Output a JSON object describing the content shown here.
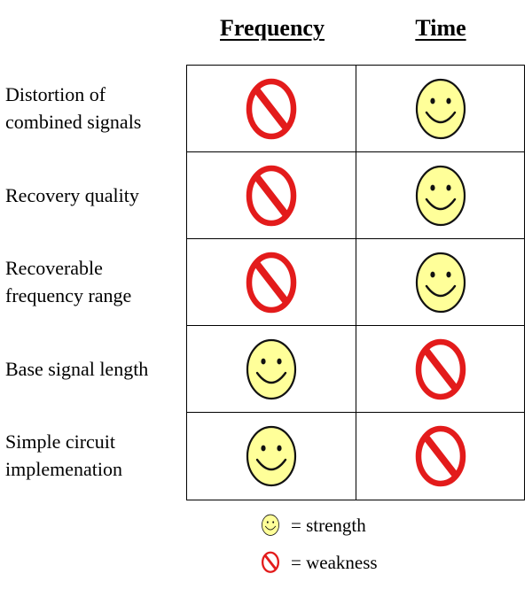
{
  "headers": {
    "frequency": "Frequency",
    "time": "Time"
  },
  "rows": [
    {
      "label": "Distortion of\ncombined signals",
      "frequency": "weakness",
      "time": "strength"
    },
    {
      "label": "Recovery quality",
      "frequency": "weakness",
      "time": "strength"
    },
    {
      "label": "Recoverable\nfrequency range",
      "frequency": "weakness",
      "time": "strength"
    },
    {
      "label": "Base signal length",
      "frequency": "strength",
      "time": "weakness"
    },
    {
      "label": "Simple circuit\nimplemenation",
      "frequency": "strength",
      "time": "weakness"
    }
  ],
  "legend": {
    "strength": "= strength",
    "weakness": "= weakness"
  },
  "icons": {
    "strength": "smiley-face-icon",
    "weakness": "prohibited-sign-icon"
  },
  "colors": {
    "smiley_fill": "#ffff99",
    "no_sign_red": "#e31b1b"
  }
}
